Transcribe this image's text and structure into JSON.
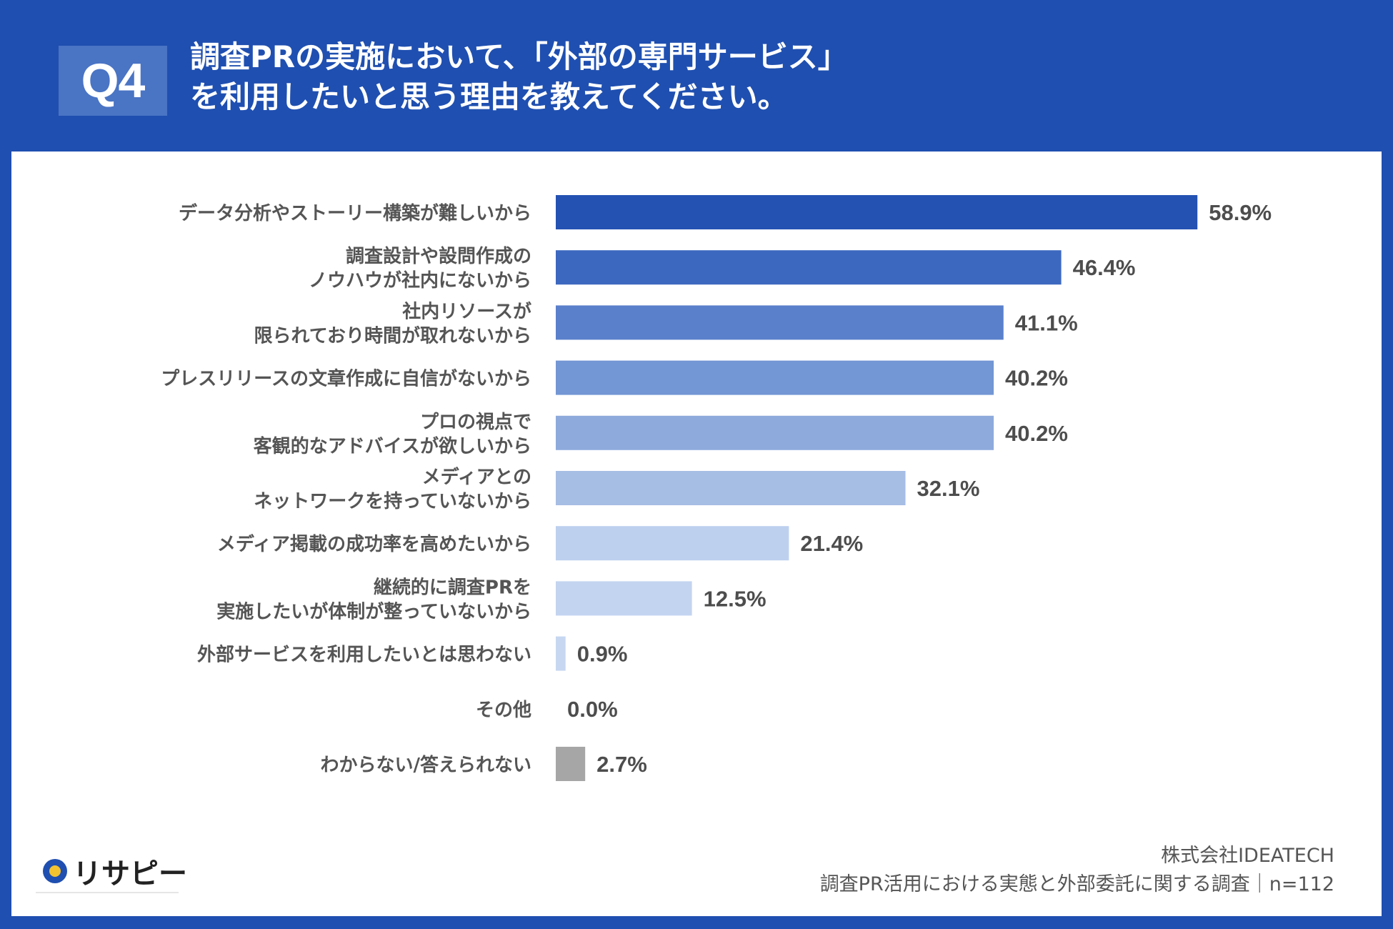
{
  "header": {
    "badge": "Q4",
    "title_line1": "調査PRの実施において、「外部の専門サービス」",
    "title_line2": "を利用したいと思う理由を教えてください。"
  },
  "colors": {
    "header_bg": "#1f4fb0",
    "label_text": "#555555",
    "value_text": "#4d4d4d"
  },
  "chart_data": {
    "type": "bar",
    "orientation": "horizontal",
    "title": "調査PRの実施において、「外部の専門サービス」を利用したいと思う理由を教えてください。",
    "xlim": [
      0,
      100
    ],
    "unit": "%",
    "categories": [
      [
        "データ分析やストーリー構築が難しいから"
      ],
      [
        "調査設計や設問作成の",
        "ノウハウが社内にないから"
      ],
      [
        "社内リソースが",
        "限られており時間が取れないから"
      ],
      [
        "プレスリリースの文章作成に自信がないから"
      ],
      [
        "プロの視点で",
        "客観的なアドバイスが欲しいから"
      ],
      [
        "メディアとの",
        "ネットワークを持っていないから"
      ],
      [
        "メディア掲載の成功率を高めたいから"
      ],
      [
        "継続的に調査PRを",
        "実施したいが体制が整っていないから"
      ],
      [
        "外部サービスを利用したいとは思わない"
      ],
      [
        "その他"
      ],
      [
        "わからない/答えられない"
      ]
    ],
    "values": [
      58.9,
      46.4,
      41.1,
      40.2,
      40.2,
      32.1,
      21.4,
      12.5,
      0.9,
      0.0,
      2.7
    ],
    "value_labels": [
      "58.9%",
      "46.4%",
      "41.1%",
      "40.2%",
      "40.2%",
      "32.1%",
      "21.4%",
      "12.5%",
      "0.9%",
      "0.0%",
      "2.7%"
    ],
    "bar_colors": [
      "#2452b2",
      "#3d68c0",
      "#5a80cb",
      "#7396d4",
      "#8eaadc",
      "#a6bde4",
      "#bdd0ee",
      "#c3d4f0",
      "#c7d7f1",
      "#c7d7f1",
      "#a6a6a6"
    ]
  },
  "footer": {
    "logo_text": "リサピー",
    "company": "株式会社IDEATECH",
    "survey": "調査PR活用における実態と外部委託に関する調査｜n=112"
  }
}
